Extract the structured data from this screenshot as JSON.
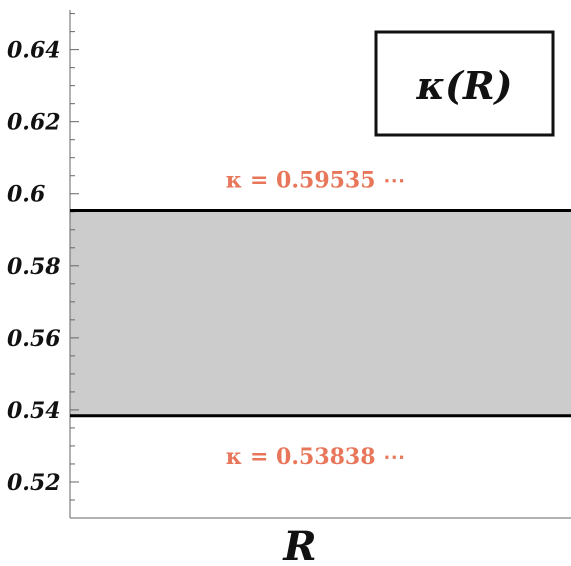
{
  "chart_data": {
    "type": "area",
    "title": "κ(R)",
    "xlabel": "R",
    "ylabel": "",
    "ylim": [
      0.51,
      0.651
    ],
    "yticks": [
      {
        "value": 0.52,
        "label": "0.52"
      },
      {
        "value": 0.54,
        "label": "0.54"
      },
      {
        "value": 0.56,
        "label": "0.56"
      },
      {
        "value": 0.58,
        "label": "0.58"
      },
      {
        "value": 0.6,
        "label": "0.6"
      },
      {
        "value": 0.62,
        "label": "0.62"
      },
      {
        "value": 0.64,
        "label": "0.64"
      }
    ],
    "band": {
      "lower": 0.53838,
      "upper": 0.59535,
      "fill": "#cccccc"
    },
    "lines": [
      {
        "value": 0.59535,
        "color": "#000000"
      },
      {
        "value": 0.53838,
        "color": "#000000"
      }
    ],
    "annotations": [
      {
        "text": "κ = 0.59535 ⋯",
        "value": 0.59535,
        "position": "above",
        "color": "#e8765a"
      },
      {
        "text": "κ = 0.53838 ⋯",
        "value": 0.53838,
        "position": "below",
        "color": "#e8765a"
      }
    ],
    "grid": false,
    "legend_position": "top-right"
  }
}
